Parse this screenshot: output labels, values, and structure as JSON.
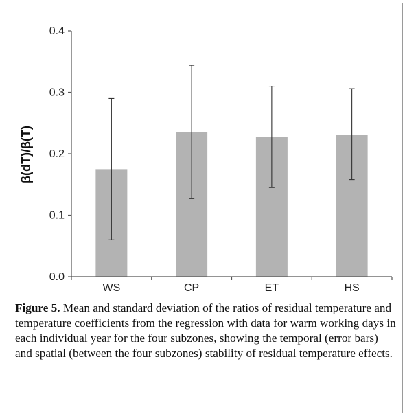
{
  "chart_data": {
    "type": "bar",
    "categories": [
      "WS",
      "CP",
      "ET",
      "HS"
    ],
    "values": [
      0.175,
      0.235,
      0.227,
      0.231
    ],
    "error_low": [
      0.06,
      0.127,
      0.145,
      0.158
    ],
    "error_high": [
      0.29,
      0.344,
      0.31,
      0.306
    ],
    "ylabel": "β(dT)/β(T)",
    "xlabel": "",
    "ylim": [
      0,
      0.4
    ],
    "yticks": [
      "0.0",
      "0.1",
      "0.2",
      "0.3",
      "0.4"
    ],
    "grid": false,
    "colors": {
      "bar": "#b3b3b3",
      "error_bar": "#333333",
      "axis": "#555555"
    }
  },
  "caption": {
    "label": "Figure 5.",
    "text": "Mean and standard deviation of the ratios of residual temperature and temperature coefficients from the regression with data for warm working days in each individual year for the four subzones, showing the temporal (error bars) and spatial (between the four subzones) stability of residual temperature effects."
  }
}
